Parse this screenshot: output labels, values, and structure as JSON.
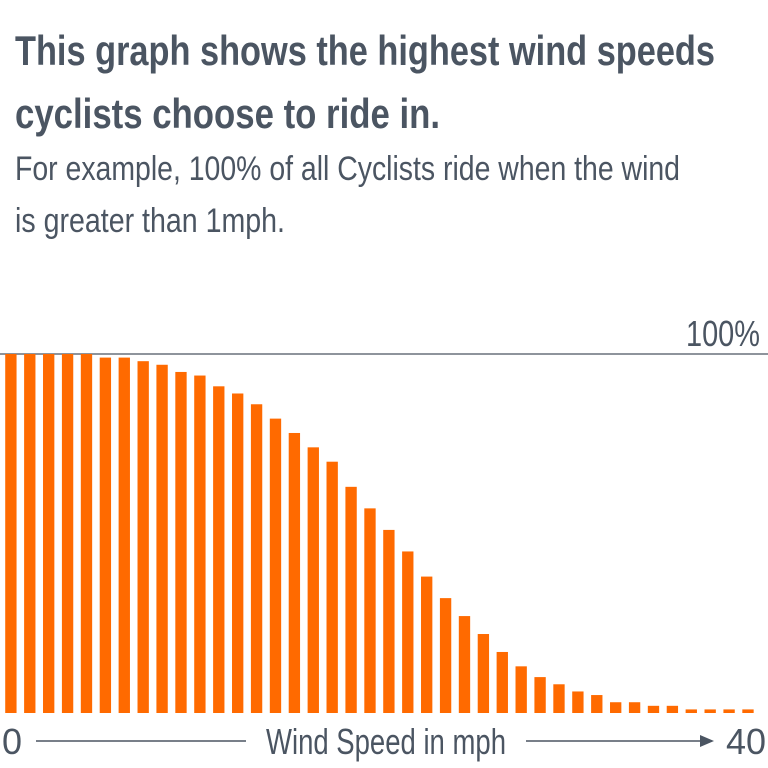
{
  "chart_data": {
    "type": "histogram",
    "title": [
      "This graph shows the highest wind speeds",
      "cyclists choose to ride in."
    ],
    "subtitle": [
      "For example, 100% of all Cyclists ride when the wind",
      "is greater than 1mph."
    ],
    "x_label": "Wind Speed in mph",
    "bins": [
      0,
      1,
      2,
      3,
      4,
      5,
      6,
      7,
      8,
      9,
      10,
      11,
      12,
      13,
      14,
      15,
      16,
      17,
      18,
      19,
      20,
      21,
      22,
      23,
      24,
      25,
      26,
      27,
      28,
      29,
      30,
      31,
      32,
      33,
      34,
      35,
      36,
      37,
      38,
      39,
      40
    ],
    "values": [
      100,
      100,
      100,
      100,
      100,
      99,
      99,
      98,
      97,
      95,
      94,
      91,
      89,
      86,
      82,
      78,
      74,
      70,
      63,
      57,
      51,
      45,
      38,
      32,
      27,
      22,
      17,
      13,
      10,
      8,
      6,
      5,
      3,
      3,
      2,
      2,
      1,
      1,
      1,
      1
    ],
    "color": "#ff6a00",
    "xlim": [
      0,
      40
    ],
    "xticks": [
      0,
      40
    ],
    "ylim": [
      0,
      100
    ],
    "yticks": [
      {
        "value": 100,
        "label": "100%"
      }
    ],
    "grid": true
  }
}
